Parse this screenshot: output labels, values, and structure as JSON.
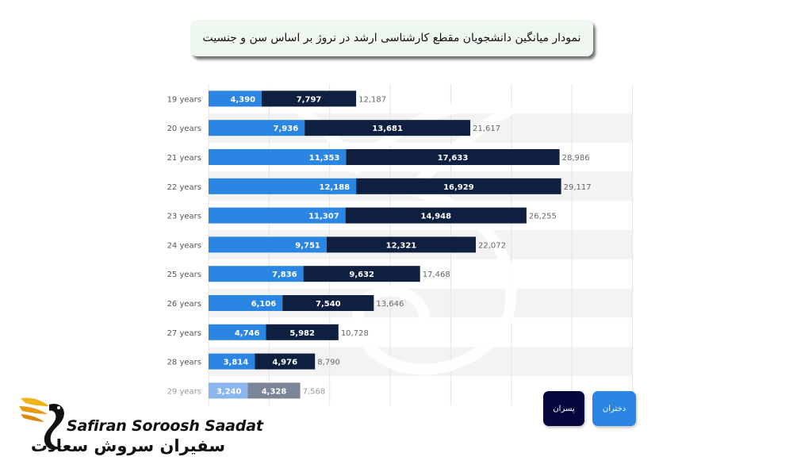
{
  "page_title": "نمودار میانگین دانشجویان مقطع کارشناسی ارشد در نروژ بر اساس سن و جنسیت",
  "legend": {
    "girls": "دختران",
    "boys": "پسران"
  },
  "logo": {
    "latin": "Safiran Soroosh Saadat",
    "persian": "سفیران سروش سعادت"
  },
  "colors": {
    "girls": "#2b86e3",
    "boys": "#0e1f3f",
    "stripe": "#f3f3f3"
  },
  "chart_data": {
    "type": "bar",
    "orientation": "horizontal",
    "stacked": true,
    "categories": [
      "19 years",
      "20 years",
      "21 years",
      "22 years",
      "23 years",
      "24 years",
      "25 years",
      "26 years",
      "27 years",
      "28 years",
      "29 years"
    ],
    "series": [
      {
        "name": "دختران",
        "values": [
          4390,
          7936,
          11353,
          12188,
          11307,
          9751,
          7836,
          6106,
          4746,
          3814,
          3240
        ]
      },
      {
        "name": "پسران",
        "values": [
          7797,
          13681,
          17633,
          16929,
          14948,
          12321,
          9632,
          7540,
          5982,
          4976,
          4328
        ]
      }
    ],
    "value_labels": {
      "girls": [
        "4,390",
        "7,936",
        "11,353",
        "12,188",
        "11,307",
        "9,751",
        "7,836",
        "6,106",
        "4,746",
        "3,814",
        "3,240"
      ],
      "boys": [
        "7,797",
        "13,681",
        "17,633",
        "16,929",
        "14,948",
        "12,321",
        "9,632",
        "7,540",
        "5,982",
        "4,976",
        "4,328"
      ],
      "totals": [
        "12,187",
        "21,617",
        "28,986",
        "29,117",
        "26,255",
        "22,072",
        "17,468",
        "13,646",
        "10,728",
        "8,790",
        "7,568"
      ]
    },
    "grid": true,
    "legend_position": "bottom-right"
  }
}
